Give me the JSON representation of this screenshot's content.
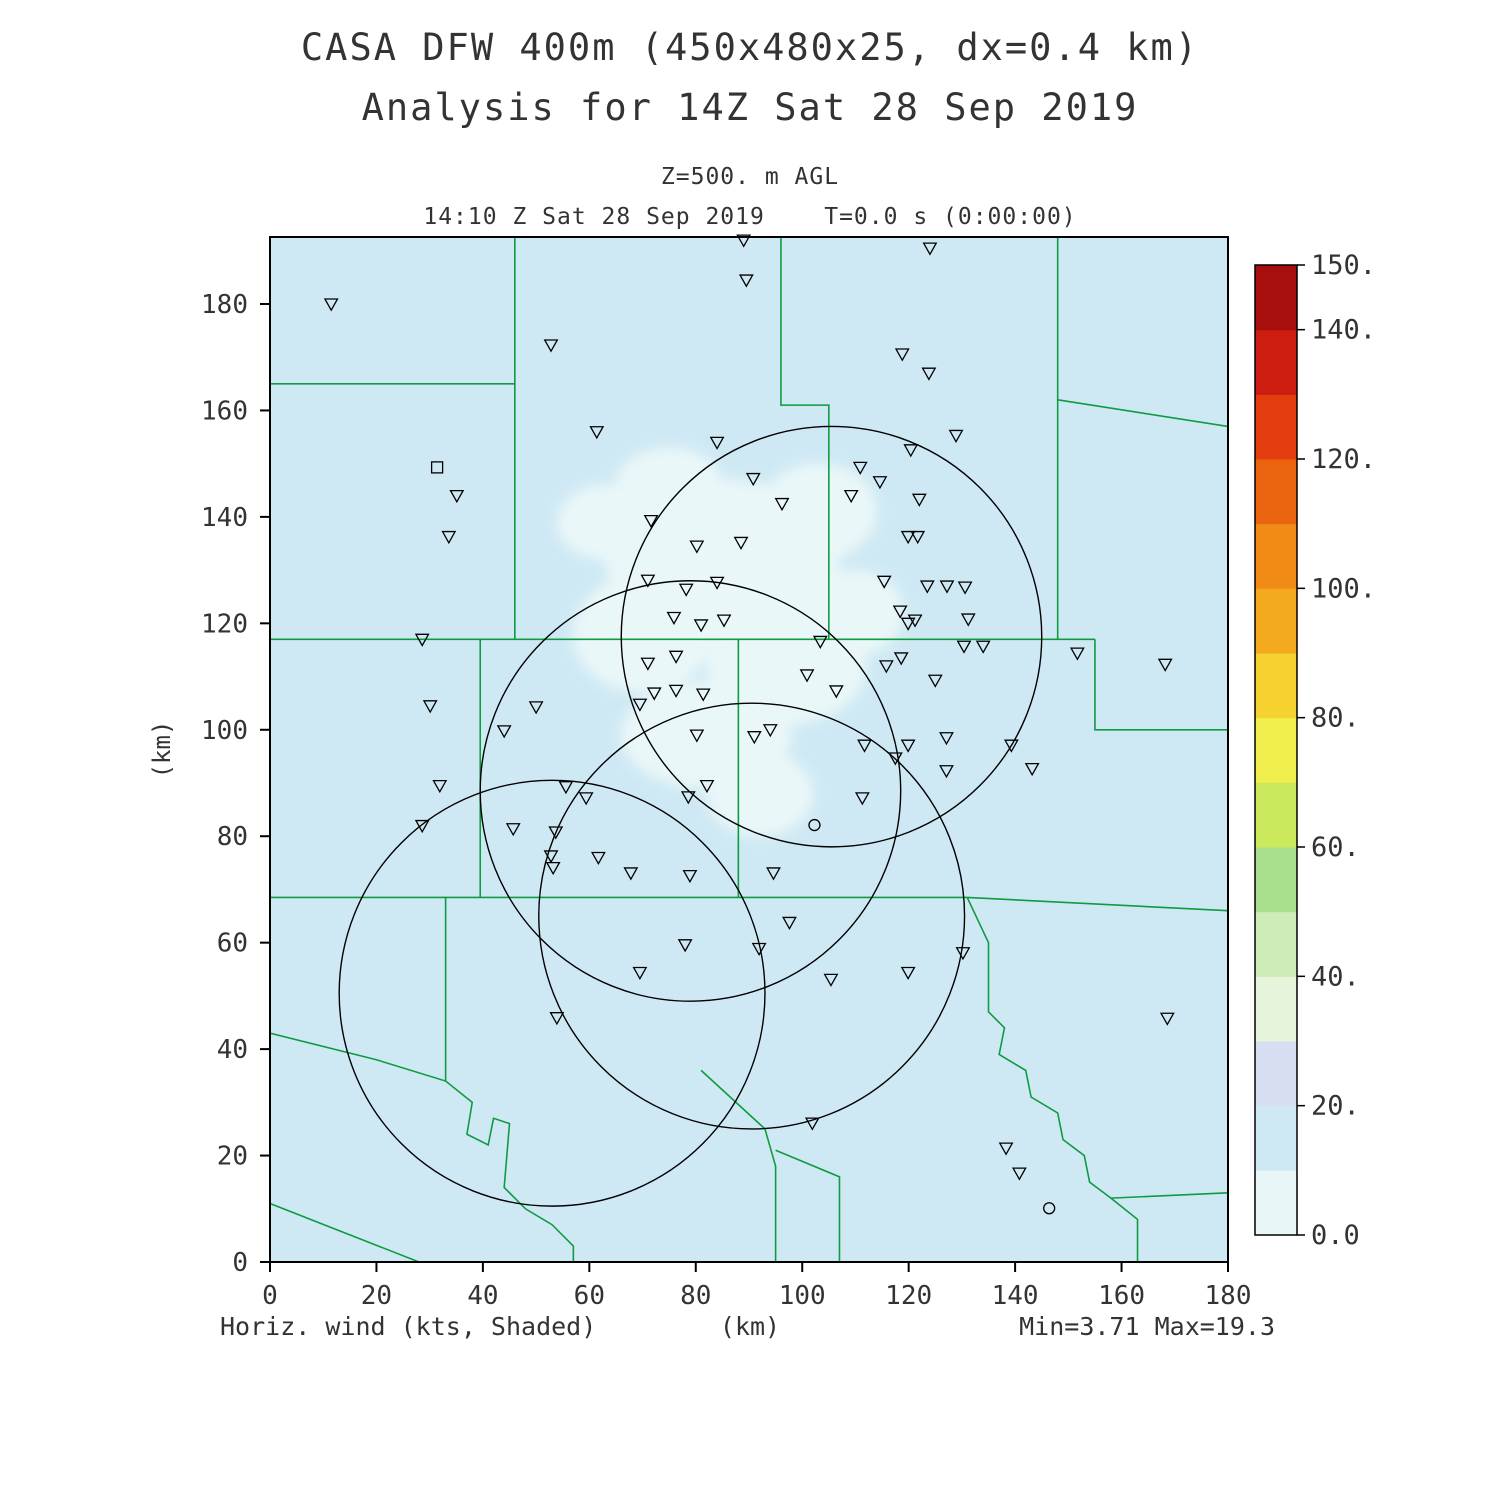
{
  "footer": {
    "left": "Horiz. wind (kts, Shaded)",
    "center": "(km)",
    "right": "Min=3.71 Max=19.3"
  },
  "chart_data": {
    "type": "map",
    "title": "CASA DFW 400m (450x480x25, dx=0.4 km)",
    "subtitle": "Analysis for 14Z Sat 28 Sep 2019",
    "level_label": "Z=500. m AGL",
    "time_label": "14:10 Z Sat 28 Sep 2019    T=0.0 s (0:00:00)",
    "field_label": "Horiz. wind (kts, Shaded)",
    "stats": {
      "min": 3.71,
      "max": 19.3,
      "units": "kts"
    },
    "axes": {
      "x": {
        "label": "(km)",
        "range": [
          0,
          180
        ],
        "plot_max": 192.6,
        "ticks": [
          0,
          20,
          40,
          60,
          80,
          100,
          120,
          140,
          160,
          180
        ]
      },
      "y": {
        "label": "(km)",
        "range": [
          0,
          192.6
        ],
        "ticks": [
          0,
          20,
          40,
          60,
          80,
          100,
          120,
          140,
          160,
          180
        ]
      }
    },
    "colorbar": {
      "levels": [
        0,
        10,
        20,
        30,
        40,
        50,
        60,
        70,
        80,
        90,
        100,
        110,
        120,
        130,
        140,
        150
      ],
      "colors": [
        "#e9f6f8",
        "#cfe9f4",
        "#d8def2",
        "#e6f4dc",
        "#cdecb8",
        "#a9df8d",
        "#cbe95c",
        "#f0ee4c",
        "#f6d230",
        "#f4aa1e",
        "#f08c16",
        "#ea640f",
        "#e23c0f",
        "#cd1d10",
        "#a60f0d"
      ],
      "tick_labels": [
        {
          "value": 0,
          "text": "0.0"
        },
        {
          "value": 20,
          "text": "20."
        },
        {
          "value": 40,
          "text": "40."
        },
        {
          "value": 60,
          "text": "60."
        },
        {
          "value": 80,
          "text": "80."
        },
        {
          "value": 100,
          "text": "100."
        },
        {
          "value": 120,
          "text": "120."
        },
        {
          "value": 140,
          "text": "140."
        },
        {
          "value": 150,
          "text": "150."
        }
      ]
    },
    "styles": {
      "county_color": "#0f9b40",
      "ring_color": "#000000",
      "text_color": "#333333"
    },
    "wind_field": {
      "base_color": "#cfe9f4",
      "patch_color": "#eaf7f8",
      "base_level_kts": "10-20",
      "patch_level_kts": "0-10",
      "patches": [
        [
          85,
          132,
          22,
          15
        ],
        [
          70,
          118,
          13,
          11
        ],
        [
          97,
          112,
          15,
          11
        ],
        [
          82,
          99,
          16,
          10
        ],
        [
          103,
          141,
          11,
          9
        ],
        [
          63,
          139,
          9,
          7
        ],
        [
          92,
          88,
          10,
          8
        ],
        [
          110,
          122,
          9,
          8
        ],
        [
          75,
          146,
          10,
          7
        ]
      ]
    },
    "radar_rings": [
      [
        105.5,
        117.5,
        39.5
      ],
      [
        79,
        88.5,
        39.5
      ],
      [
        53,
        50.5,
        40
      ],
      [
        90.5,
        65,
        40
      ]
    ],
    "stations": {
      "triangles": [
        [
          11.5,
          180
        ],
        [
          89,
          192
        ],
        [
          89.5,
          184.5
        ],
        [
          124,
          190.5
        ],
        [
          52.8,
          172.3
        ],
        [
          118.8,
          170.6
        ],
        [
          123.8,
          167
        ],
        [
          61.4,
          156
        ],
        [
          128.9,
          155.3
        ],
        [
          84,
          154
        ],
        [
          120.4,
          152.6
        ],
        [
          90.8,
          147.2
        ],
        [
          110.9,
          149.3
        ],
        [
          114.6,
          146.6
        ],
        [
          35.1,
          144
        ],
        [
          96.2,
          142.5
        ],
        [
          109.2,
          144
        ],
        [
          122,
          143.3
        ],
        [
          33.6,
          136.3
        ],
        [
          71.6,
          139.3
        ],
        [
          80.2,
          134.5
        ],
        [
          88.5,
          135.2
        ],
        [
          119.9,
          136.3
        ],
        [
          121.7,
          136.3
        ],
        [
          71,
          128.1
        ],
        [
          78.2,
          126.4
        ],
        [
          84,
          127.7
        ],
        [
          115.4,
          127.9
        ],
        [
          123.5,
          127
        ],
        [
          127.2,
          127
        ],
        [
          130.6,
          126.8
        ],
        [
          75.9,
          121.1
        ],
        [
          81,
          119.7
        ],
        [
          85.3,
          120.6
        ],
        [
          118.4,
          122.3
        ],
        [
          119.9,
          120
        ],
        [
          121.2,
          120.6
        ],
        [
          131.2,
          120.8
        ],
        [
          28.6,
          117
        ],
        [
          71,
          112.5
        ],
        [
          76.3,
          113.8
        ],
        [
          103.4,
          116.6
        ],
        [
          130.4,
          115.7
        ],
        [
          134,
          115.7
        ],
        [
          151.7,
          114.4
        ],
        [
          168.2,
          112.3
        ],
        [
          115.8,
          112
        ],
        [
          118.6,
          113.5
        ],
        [
          125,
          109.3
        ],
        [
          100.9,
          110.3
        ],
        [
          76.3,
          107.4
        ],
        [
          81.4,
          106.7
        ],
        [
          106.4,
          107.3
        ],
        [
          30.1,
          104.5
        ],
        [
          50,
          104.3
        ],
        [
          69.5,
          104.8
        ],
        [
          72.2,
          106.9
        ],
        [
          44,
          99.8
        ],
        [
          80.2,
          99
        ],
        [
          91,
          98.7
        ],
        [
          94,
          100
        ],
        [
          111.7,
          97.1
        ],
        [
          117.5,
          94.7
        ],
        [
          119.9,
          97.1
        ],
        [
          127.1,
          98.5
        ],
        [
          139.3,
          97.1
        ],
        [
          127.1,
          92.3
        ],
        [
          143.2,
          92.7
        ],
        [
          31.9,
          89.5
        ],
        [
          55.6,
          89.3
        ],
        [
          59.4,
          87.2
        ],
        [
          82.1,
          89.5
        ],
        [
          78.6,
          87.4
        ],
        [
          111.3,
          87.2
        ],
        [
          28.6,
          82
        ],
        [
          45.7,
          81.4
        ],
        [
          53.7,
          80.8
        ],
        [
          52.8,
          76.3
        ],
        [
          61.7,
          76
        ],
        [
          53.2,
          74.1
        ],
        [
          67.8,
          73.1
        ],
        [
          78.9,
          72.6
        ],
        [
          94.6,
          73.1
        ],
        [
          97.6,
          63.8
        ],
        [
          78,
          59.6
        ],
        [
          91.9,
          58.9
        ],
        [
          130.2,
          58.1
        ],
        [
          69.5,
          54.4
        ],
        [
          105.4,
          53.1
        ],
        [
          119.9,
          54.4
        ],
        [
          53.9,
          45.9
        ],
        [
          168.6,
          45.8
        ],
        [
          101.9,
          26.1
        ],
        [
          138.3,
          21.4
        ],
        [
          140.8,
          16.7
        ]
      ],
      "squares": [
        [
          31.4,
          149.3
        ]
      ],
      "circles": [
        [
          102.3,
          82.1
        ],
        [
          146.4,
          10.1
        ]
      ]
    },
    "county_lines": [
      [
        [
          0,
          165
        ],
        [
          46,
          165
        ]
      ],
      [
        [
          46,
          192.6
        ],
        [
          46,
          117
        ]
      ],
      [
        [
          96,
          192.6
        ],
        [
          96,
          161
        ],
        [
          105,
          161
        ],
        [
          105,
          117
        ]
      ],
      [
        [
          148,
          192.6
        ],
        [
          148,
          117
        ]
      ],
      [
        [
          148,
          162
        ],
        [
          180,
          157
        ]
      ],
      [
        [
          0,
          117
        ],
        [
          155,
          117
        ]
      ],
      [
        [
          155,
          117
        ],
        [
          155,
          100
        ],
        [
          180,
          100
        ]
      ],
      [
        [
          39.5,
          117
        ],
        [
          39.5,
          68.5
        ]
      ],
      [
        [
          88,
          117
        ],
        [
          88,
          68.5
        ]
      ],
      [
        [
          0,
          68.5
        ],
        [
          131,
          68.5
        ]
      ],
      [
        [
          131,
          68.5
        ],
        [
          180,
          66
        ]
      ],
      [
        [
          131,
          68.5
        ],
        [
          135,
          60
        ],
        [
          135,
          47
        ],
        [
          138,
          44
        ],
        [
          137,
          39
        ],
        [
          142,
          36
        ],
        [
          143,
          31
        ],
        [
          148,
          28
        ],
        [
          149,
          23
        ],
        [
          153,
          20
        ],
        [
          154,
          15
        ],
        [
          158,
          12
        ],
        [
          163,
          8
        ],
        [
          163,
          0
        ]
      ],
      [
        [
          158,
          12
        ],
        [
          180,
          13
        ]
      ],
      [
        [
          33,
          68.5
        ],
        [
          33,
          34
        ]
      ],
      [
        [
          0,
          43
        ],
        [
          20,
          38
        ],
        [
          33,
          34
        ],
        [
          38,
          30
        ],
        [
          37,
          24
        ],
        [
          41,
          22
        ],
        [
          42,
          27
        ],
        [
          45,
          26
        ],
        [
          44,
          14
        ],
        [
          48,
          10
        ],
        [
          53,
          7
        ],
        [
          57,
          3
        ],
        [
          57,
          0
        ]
      ],
      [
        [
          0,
          11
        ],
        [
          28,
          0
        ]
      ],
      [
        [
          81,
          36
        ],
        [
          93,
          25
        ],
        [
          95,
          18
        ],
        [
          95,
          0
        ]
      ],
      [
        [
          95,
          21
        ],
        [
          107,
          16
        ],
        [
          107,
          0
        ]
      ]
    ]
  }
}
